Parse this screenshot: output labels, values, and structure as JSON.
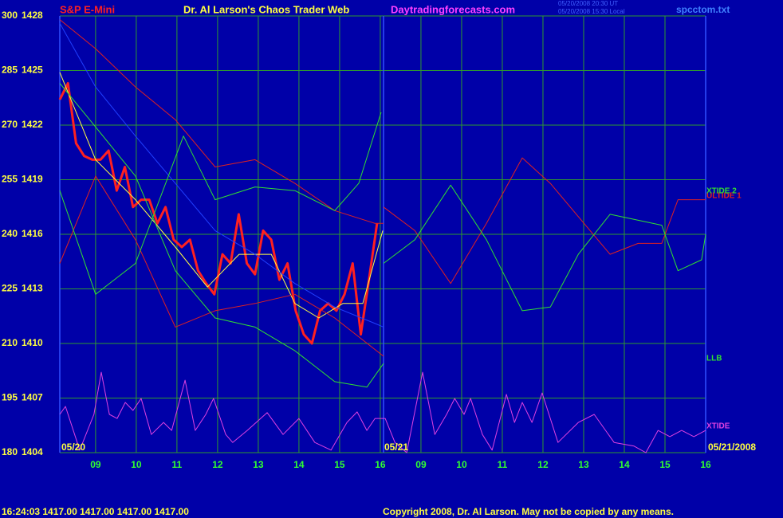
{
  "chart_data": {
    "type": "line",
    "symbol": "S&P E-Mini",
    "title": "Dr. Al Larson's Chaos Trader Web",
    "website": "Daytradingforecasts.com",
    "timestamps": [
      "05/20/2008 20:30 UT",
      "05/20/2008 15:30 Local"
    ],
    "file": "spcctom.txt",
    "annotations": [
      "05/20",
      "05/21",
      "05/21/2008"
    ],
    "quote": "16:24:03  1417.00 1417.00 1417.00 1417.00",
    "copyright": "Copyright 2008, Dr. Al Larson. May not be copied by any means.",
    "xlim": [
      0,
      15.88
    ],
    "xticks": [
      {
        "value": 0.88,
        "label": "09"
      },
      {
        "value": 1.88,
        "label": "10"
      },
      {
        "value": 2.88,
        "label": "11"
      },
      {
        "value": 3.88,
        "label": "12"
      },
      {
        "value": 4.88,
        "label": "13"
      },
      {
        "value": 5.88,
        "label": "14"
      },
      {
        "value": 6.88,
        "label": "15"
      },
      {
        "value": 7.88,
        "label": "16"
      },
      {
        "value": 8.88,
        "label": "09"
      },
      {
        "value": 9.88,
        "label": "10"
      },
      {
        "value": 10.88,
        "label": "11"
      },
      {
        "value": 11.88,
        "label": "12"
      },
      {
        "value": 12.88,
        "label": "13"
      },
      {
        "value": 13.88,
        "label": "14"
      },
      {
        "value": 14.88,
        "label": "15"
      },
      {
        "value": 15.88,
        "label": "16"
      }
    ],
    "ylim": [
      180,
      300
    ],
    "yticks": [
      180,
      195,
      210,
      225,
      240,
      255,
      270,
      285,
      300
    ],
    "y2lim": [
      1404,
      1428
    ],
    "y2ticks": [
      1404,
      1407,
      1410,
      1413,
      1416,
      1419,
      1422,
      1425,
      1428
    ],
    "grid": true,
    "series": [
      {
        "color": "#ff2020",
        "axis": "y2",
        "x": [
          0,
          0.2,
          0.4,
          0.6,
          0.8,
          1.0,
          1.2,
          1.4,
          1.6,
          1.8,
          2.0,
          2.2,
          2.4,
          2.6,
          2.8,
          3.0,
          3.2,
          3.4,
          3.6,
          3.8,
          4.0,
          4.2,
          4.4,
          4.6,
          4.8,
          5.0,
          5.2,
          5.4,
          5.6,
          5.8,
          6.0,
          6.2,
          6.4,
          6.6,
          6.8,
          7.0,
          7.2,
          7.4,
          7.6,
          7.8
        ],
        "values": [
          1423.4,
          1424.3,
          1421.0,
          1420.3,
          1420.1,
          1420.1,
          1420.6,
          1418.4,
          1419.7,
          1417.5,
          1417.9,
          1417.9,
          1416.6,
          1417.5,
          1415.7,
          1415.3,
          1415.7,
          1414.0,
          1413.3,
          1412.7,
          1414.9,
          1414.4,
          1417.1,
          1414.4,
          1413.8,
          1416.2,
          1415.7,
          1413.5,
          1414.4,
          1411.8,
          1410.5,
          1410.0,
          1411.8,
          1412.2,
          1411.8,
          1412.7,
          1414.4,
          1410.5,
          1413.5,
          1416.6
        ]
      },
      {
        "color": "#ffff40",
        "axis": "y2",
        "x": [
          0,
          0.88,
          1.86,
          2.84,
          3.63,
          4.41,
          5.2,
          5.78,
          6.37,
          6.96,
          7.45,
          7.94
        ],
        "values": [
          1424.9,
          1420.1,
          1417.9,
          1415.3,
          1413.1,
          1414.9,
          1414.9,
          1412.2,
          1411.4,
          1412.2,
          1412.2,
          1416.2
        ]
      },
      {
        "color": "#2040ff",
        "axis": "y2",
        "x": [
          0,
          0.88,
          1.86,
          2.84,
          3.82,
          4.8,
          5.78,
          6.76,
          7.75,
          7.96
        ],
        "values": [
          1427.6,
          1424.1,
          1421.4,
          1418.8,
          1416.2,
          1414.9,
          1413.3,
          1412.0,
          1411.1,
          1410.9
        ]
      },
      {
        "color": "#e02020",
        "axis": "y2",
        "x": [
          0,
          0.88,
          1.86,
          2.84,
          3.82,
          4.8,
          5.78,
          6.76,
          7.75,
          7.96
        ],
        "values": [
          1427.8,
          1426.2,
          1424.1,
          1422.3,
          1419.7,
          1420.1,
          1418.8,
          1417.3,
          1416.6,
          1416.6
        ]
      },
      {
        "color": "#e02020",
        "axis": "y2",
        "x": [
          0,
          0.88,
          1.86,
          2.84,
          3.82,
          4.8,
          5.78,
          6.76,
          7.96
        ],
        "values": [
          1414.4,
          1419.2,
          1415.7,
          1410.9,
          1411.8,
          1412.2,
          1412.7,
          1411.4,
          1409.3
        ]
      },
      {
        "color": "#30e030",
        "axis": "y2",
        "x": [
          0,
          0.88,
          1.86,
          3.04,
          3.82,
          4.8,
          5.78,
          6.76,
          7.35,
          7.9
        ],
        "values": [
          1418.4,
          1412.7,
          1414.4,
          1421.4,
          1417.9,
          1418.6,
          1418.4,
          1417.3,
          1418.8,
          1422.7
        ]
      },
      {
        "name": "LLB",
        "color": "#30e030",
        "axis": "y2",
        "x": [
          0,
          0.88,
          1.86,
          2.84,
          3.82,
          4.8,
          5.78,
          6.76,
          7.55,
          7.96
        ],
        "values": [
          1424.3,
          1421.9,
          1419.2,
          1414.0,
          1411.4,
          1410.9,
          1409.6,
          1407.9,
          1407.6,
          1408.9
        ]
      },
      {
        "name": "ULTIDE 1",
        "color": "#e02020",
        "axis": "y2",
        "x": [
          7.96,
          8.73,
          9.61,
          10.49,
          11.37,
          12.06,
          13.53,
          14.22,
          14.8,
          15.2,
          15.88
        ],
        "values": [
          1417.5,
          1416.2,
          1413.3,
          1416.6,
          1420.2,
          1418.8,
          1414.9,
          1415.5,
          1415.5,
          1417.9,
          1417.9
        ]
      },
      {
        "name": "XTIDE 2",
        "color": "#30e030",
        "axis": "y2",
        "x": [
          7.96,
          8.73,
          9.61,
          10.49,
          11.37,
          12.06,
          12.75,
          13.53,
          14.8,
          15.2,
          15.78,
          15.88
        ],
        "values": [
          1414.4,
          1415.7,
          1418.7,
          1415.7,
          1411.8,
          1412.0,
          1414.9,
          1417.1,
          1416.5,
          1414.0,
          1414.6,
          1416.0
        ]
      },
      {
        "name": "XTIDE",
        "color": "#e040e0",
        "x": [
          0,
          0.14,
          0.49,
          0.84,
          1.02,
          1.22,
          1.41,
          1.61,
          1.8,
          2.0,
          2.25,
          2.55,
          2.75,
          3.08,
          3.33,
          3.59,
          3.78,
          4.08,
          4.25,
          4.61,
          5.1,
          5.49,
          5.88,
          6.27,
          6.67,
          7.06,
          7.31,
          7.55,
          7.75,
          8.0,
          8.24,
          8.53,
          8.92,
          9.22,
          9.51,
          9.71,
          9.94,
          10.1,
          10.39,
          10.63,
          10.98,
          11.18,
          11.37,
          11.61,
          11.86,
          12.25,
          12.75,
          13.14,
          13.63,
          14.12,
          14.41,
          14.71,
          15.0,
          15.29,
          15.59,
          15.88
        ],
        "values": [
          190.5,
          192.7,
          180.7,
          190.5,
          202.1,
          190.5,
          189.4,
          193.8,
          191.6,
          194.9,
          185.0,
          188.3,
          186.1,
          199.9,
          186.1,
          190.5,
          194.9,
          185.0,
          182.8,
          186.1,
          191.0,
          185.0,
          189.4,
          182.8,
          180.7,
          188.3,
          191.2,
          186.1,
          189.4,
          189.4,
          182.8,
          180.0,
          202.1,
          185.0,
          190.5,
          194.9,
          190.5,
          194.9,
          185.0,
          180.7,
          196.0,
          188.3,
          193.8,
          188.3,
          196.4,
          182.8,
          188.3,
          190.5,
          182.8,
          181.8,
          180.0,
          186.1,
          184.4,
          186.1,
          184.4,
          186.1
        ]
      }
    ]
  }
}
